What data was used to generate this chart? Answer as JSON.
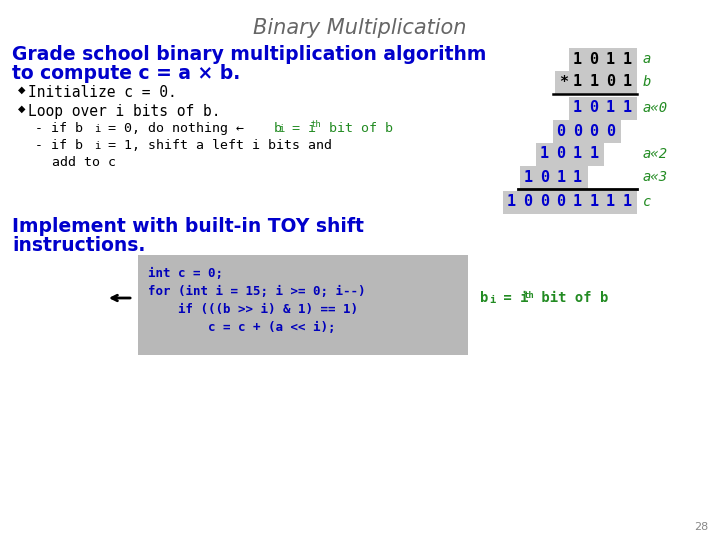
{
  "title": "Binary Multiplication",
  "title_color": "#666666",
  "bg_color": "#ffffff",
  "slide_num": "28",
  "heading_line1": "Grade school binary multiplication algorithm",
  "heading_line2": "to compute c = a × b.",
  "heading_color": "#0000cc",
  "bullet_color": "#000000",
  "sub_color": "#000000",
  "sub_note_color": "#228b22",
  "implement_line1": "Implement with built-in TOY shift",
  "implement_line2": "instructions.",
  "implement_color": "#0000cc",
  "gray_bg": "#c8c8c8",
  "label_color": "#228b22",
  "row_defs": [
    {
      "digits": [
        "1",
        "0",
        "1",
        "1"
      ],
      "star": false,
      "shift": 0,
      "label": "a",
      "show_label": true,
      "color": "#000000"
    },
    {
      "digits": [
        "1",
        "1",
        "0",
        "1"
      ],
      "star": true,
      "shift": 0,
      "label": "b",
      "show_label": true,
      "color": "#000000"
    },
    {
      "digits": [
        "1",
        "0",
        "1",
        "1"
      ],
      "star": false,
      "shift": 0,
      "label": "a«0",
      "show_label": true,
      "color": "#0000cc"
    },
    {
      "digits": [
        "0",
        "0",
        "0",
        "0"
      ],
      "star": false,
      "shift": 1,
      "label": "",
      "show_label": false,
      "color": "#0000cc"
    },
    {
      "digits": [
        "1",
        "0",
        "1",
        "1"
      ],
      "star": false,
      "shift": 2,
      "label": "a«2",
      "show_label": true,
      "color": "#0000cc"
    },
    {
      "digits": [
        "1",
        "0",
        "1",
        "1"
      ],
      "star": false,
      "shift": 3,
      "label": "a«3",
      "show_label": true,
      "color": "#0000cc"
    },
    {
      "digits": [
        "1",
        "0",
        "0",
        "0",
        "1",
        "1",
        "1",
        "1"
      ],
      "star": false,
      "shift": 0,
      "label": "c",
      "show_label": true,
      "color": "#0000cc"
    }
  ],
  "code_bg": "#b8b8b8",
  "code_text_color": "#0000bb",
  "code_note_color": "#228b22"
}
